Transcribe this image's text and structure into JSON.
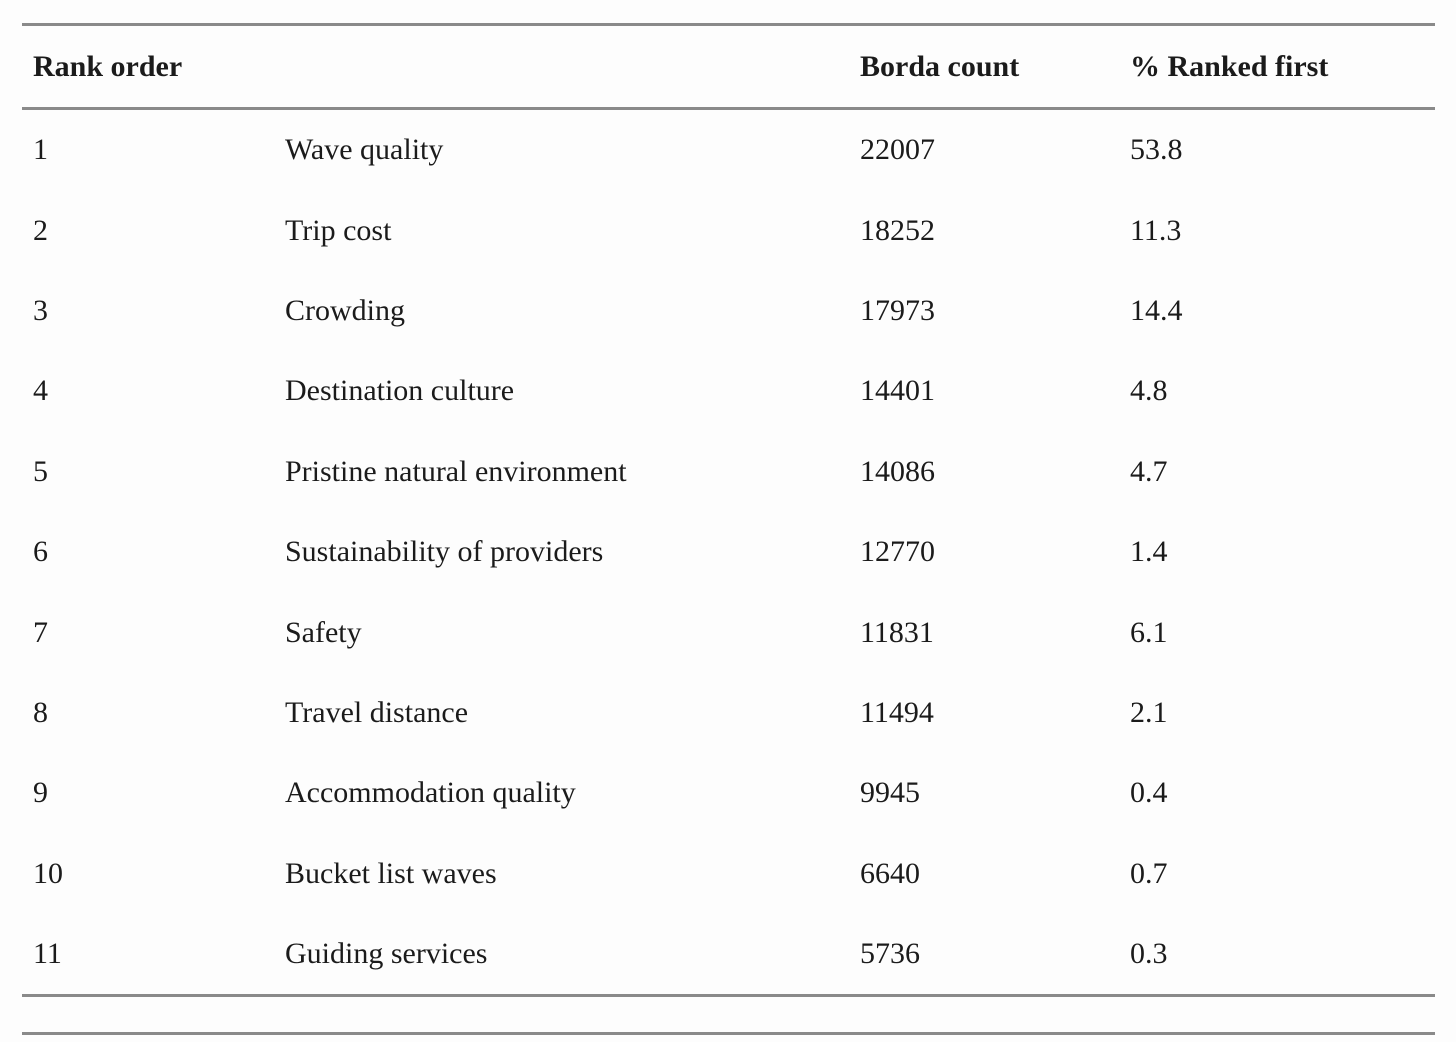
{
  "table": {
    "header": {
      "rank_order": "Rank order",
      "borda_count": "Borda count",
      "pct_ranked_first": "% Ranked first"
    },
    "rows": [
      {
        "rank": "1",
        "attribute": "Wave quality",
        "borda_count": "22007",
        "pct_ranked_first": "53.8"
      },
      {
        "rank": "2",
        "attribute": "Trip cost",
        "borda_count": "18252",
        "pct_ranked_first": "11.3"
      },
      {
        "rank": "3",
        "attribute": "Crowding",
        "borda_count": "17973",
        "pct_ranked_first": "14.4"
      },
      {
        "rank": "4",
        "attribute": "Destination culture",
        "borda_count": "14401",
        "pct_ranked_first": "4.8"
      },
      {
        "rank": "5",
        "attribute": "Pristine natural environment",
        "borda_count": "14086",
        "pct_ranked_first": "4.7"
      },
      {
        "rank": "6",
        "attribute": "Sustainability of providers",
        "borda_count": "12770",
        "pct_ranked_first": "1.4"
      },
      {
        "rank": "7",
        "attribute": "Safety",
        "borda_count": "11831",
        "pct_ranked_first": "6.1"
      },
      {
        "rank": "8",
        "attribute": "Travel distance",
        "borda_count": "11494",
        "pct_ranked_first": "2.1"
      },
      {
        "rank": "9",
        "attribute": "Accommodation quality",
        "borda_count": "9945",
        "pct_ranked_first": "0.4"
      },
      {
        "rank": "10",
        "attribute": "Bucket list waves",
        "borda_count": "6640",
        "pct_ranked_first": "0.7"
      },
      {
        "rank": "11",
        "attribute": "Guiding services",
        "borda_count": "5736",
        "pct_ranked_first": "0.3"
      }
    ],
    "colors": {
      "rule": "#8a8a8a",
      "text": "#1b1b1b",
      "background": "#fdfdfd"
    }
  }
}
